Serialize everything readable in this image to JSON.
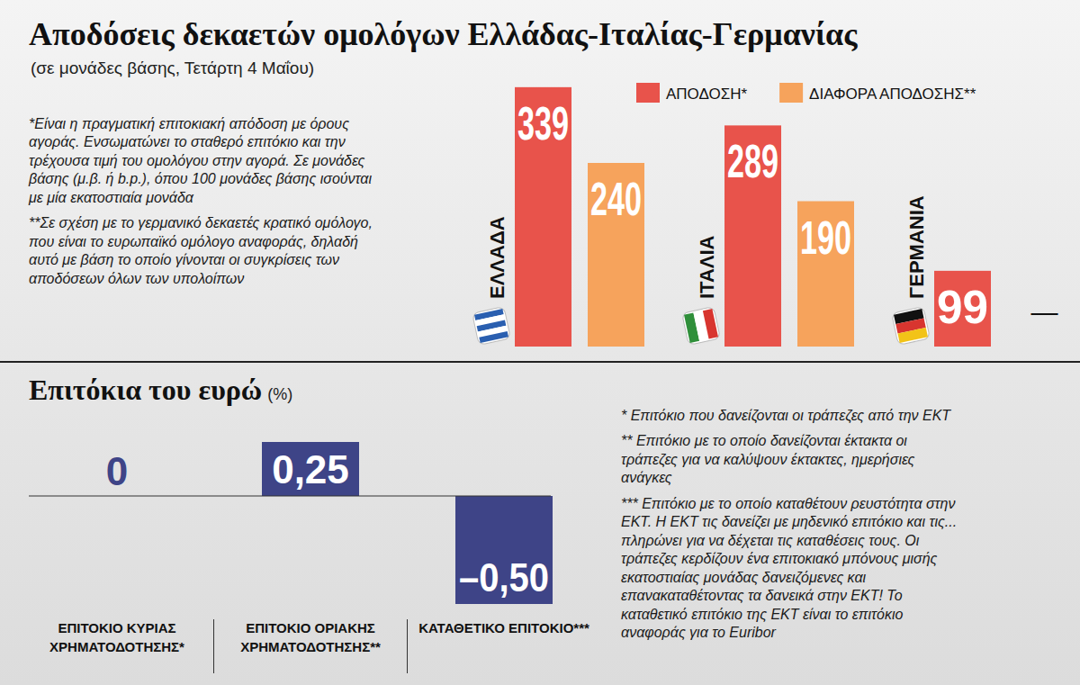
{
  "chart_data": [
    {
      "type": "bar",
      "title": "Αποδόσεις δεκαετών ομολόγων Ελλάδας-Ιταλίας-Γερμανίας",
      "subtitle": "(σε μονάδες βάσης, Τετάρτη 4 Μαΐου)",
      "categories": [
        "ΕΛΛΑΔΑ",
        "ΙΤΑΛΙΑ",
        "ΓΕΡΜΑΝΙΑ"
      ],
      "series": [
        {
          "name": "ΑΠΟΔΟΣΗ*",
          "color": "#e8534b",
          "values": [
            339,
            289,
            99
          ]
        },
        {
          "name": "ΔΙΑΦΟΡΑ ΑΠΟΔΟΣΗΣ**",
          "color": "#f6a35c",
          "values": [
            240,
            190,
            null
          ],
          "value_labels": [
            "240",
            "190",
            "—"
          ]
        }
      ],
      "ylim": [
        0,
        340
      ],
      "tick_labels": false,
      "data_labels": true,
      "legend": "top-right",
      "annotations": [
        "*Είναι η πραγματική επιτοκιακή απόδοση με όρους αγοράς. Ενσωματώνει το σταθερό επιτόκιο και την τρέχουσα τιμή του ομολόγου στην αγορά. Σε μονάδες βάσης (μ.β. ή b.p.), όπου 100 μονάδες βάσης ισούνται με μία εκατοστιαία μονάδα",
        "**Σε σχέση με το γερμανικό δεκαετές κρατικό ομόλογο, που είναι το ευρωπαϊκό ομόλογο αναφοράς, δηλαδή αυτό με βάση το οποίο γίνονται οι συγκρίσεις των αποδόσεων όλων των υπολοίπων"
      ]
    },
    {
      "type": "bar",
      "title": "Επιτόκια του ευρώ",
      "subtitle": "(%)",
      "categories": [
        "ΕΠΙΤΟΚΙΟ ΚΥΡΙΑΣ ΧΡΗΜΑΤΟΔΟΤΗΣΗΣ*",
        "ΕΠΙΤΟΚΙΟ ΟΡΙΑΚΗΣ ΧΡΗΜΑΤΟΔΟΤΗΣΗΣ**",
        "ΚΑΤΑΘΕΤΙΚΟ ΕΠΙΤΟΚΙΟ***"
      ],
      "values": [
        0,
        0.25,
        -0.5
      ],
      "value_labels": [
        "0",
        "0,25",
        "–0,50"
      ],
      "color": "#3e4487",
      "ylim": [
        -0.5,
        0.25
      ],
      "tick_labels": false,
      "data_labels": true,
      "annotations": [
        "* Επιτόκιο που δανείζονται οι τράπεζες από την ΕΚΤ",
        "** Επιτόκιο με το οποίο δανείζονται έκτακτα οι τράπεζες για να καλύψουν έκτακτες, ημερήσιες ανάγκες",
        "*** Επιτόκιο με το οποίο καταθέτουν ρευστότητα στην ΕΚΤ. Η ΕΚΤ τις δανείζει με μηδενικό επιτόκιο και τις... πληρώνει για να δέχεται τις καταθέσεις τους. Οι τράπεζες κερδίζουν ένα επιτοκιακό μπόνους μισής εκατοστιαίας μονάδας δανειζόμενες και επανακαταθέτοντας τα δανεικά στην ΕΚΤ! Το καταθετικό επιτόκιο της ΕΚΤ είναι το επιτόκιο αναφοράς για το Euribor"
      ]
    }
  ]
}
